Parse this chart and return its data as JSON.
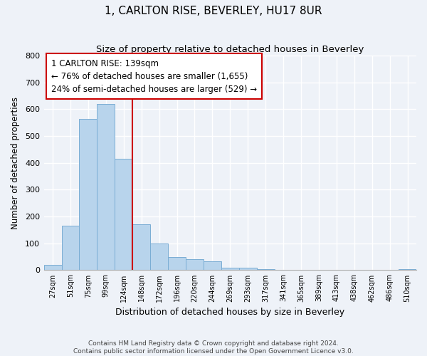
{
  "title": "1, CARLTON RISE, BEVERLEY, HU17 8UR",
  "subtitle": "Size of property relative to detached houses in Beverley",
  "xlabel": "Distribution of detached houses by size in Beverley",
  "ylabel": "Number of detached properties",
  "bar_color": "#b8d4ec",
  "bar_edge_color": "#7aadd4",
  "background_color": "#eef2f8",
  "grid_color": "#ffffff",
  "bin_labels": [
    "27sqm",
    "51sqm",
    "75sqm",
    "99sqm",
    "124sqm",
    "148sqm",
    "172sqm",
    "196sqm",
    "220sqm",
    "244sqm",
    "269sqm",
    "293sqm",
    "317sqm",
    "341sqm",
    "365sqm",
    "389sqm",
    "413sqm",
    "438sqm",
    "462sqm",
    "486sqm",
    "510sqm"
  ],
  "bar_values": [
    20,
    165,
    565,
    620,
    415,
    170,
    100,
    50,
    40,
    33,
    10,
    8,
    3,
    1,
    1,
    0,
    0,
    0,
    0,
    0,
    5
  ],
  "ylim": [
    0,
    800
  ],
  "yticks": [
    0,
    100,
    200,
    300,
    400,
    500,
    600,
    700,
    800
  ],
  "property_line_bin": 4,
  "property_label": "1 CARLTON RISE: 139sqm",
  "annotation_line1": "← 76% of detached houses are smaller (1,655)",
  "annotation_line2": "24% of semi-detached houses are larger (529) →",
  "footer_line1": "Contains HM Land Registry data © Crown copyright and database right 2024.",
  "footer_line2": "Contains public sector information licensed under the Open Government Licence v3.0."
}
